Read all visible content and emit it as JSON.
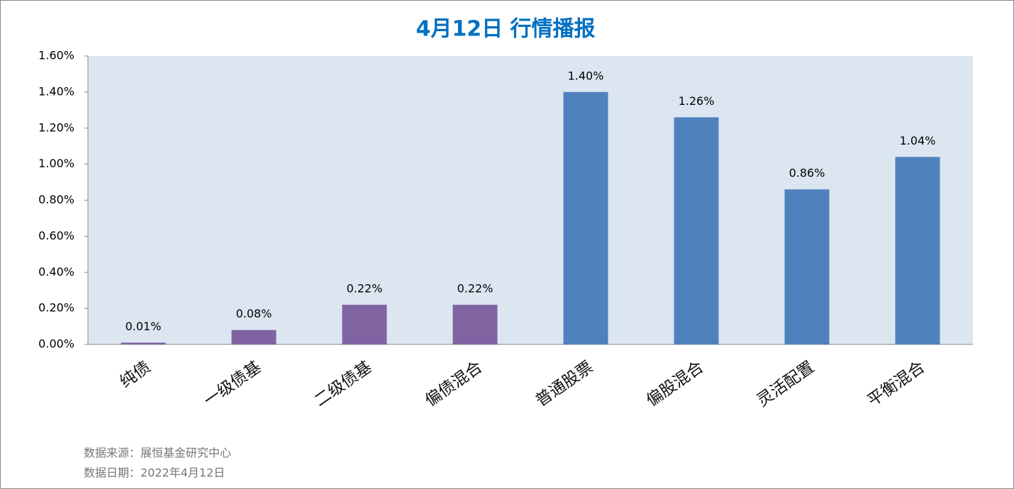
{
  "chart_data": {
    "type": "bar",
    "title": "4月12日  行情播报",
    "categories": [
      "纯债",
      "一级债基",
      "二级债基",
      "偏债混合",
      "普通股票",
      "偏股混合",
      "灵活配置",
      "平衡混合"
    ],
    "values": [
      0.01,
      0.08,
      0.22,
      0.22,
      1.4,
      1.26,
      0.86,
      1.04
    ],
    "value_labels": [
      "0.01%",
      "0.08%",
      "0.22%",
      "0.22%",
      "1.40%",
      "1.26%",
      "0.86%",
      "1.04%"
    ],
    "colors": [
      "#8064a2",
      "#8064a2",
      "#8064a2",
      "#8064a2",
      "#4f81bd",
      "#4f81bd",
      "#4f81bd",
      "#4f81bd"
    ],
    "ylim": [
      0,
      1.6
    ],
    "yticks": [
      {
        "value": 0,
        "label": "0.00%"
      },
      {
        "value": 0.2,
        "label": "0.20%"
      },
      {
        "value": 0.4,
        "label": "0.40%"
      },
      {
        "value": 0.6,
        "label": "0.60%"
      },
      {
        "value": 0.8,
        "label": "0.80%"
      },
      {
        "value": 1.0,
        "label": "1.00%"
      },
      {
        "value": 1.2,
        "label": "1.20%"
      },
      {
        "value": 1.4,
        "label": "1.40%"
      },
      {
        "value": 1.6,
        "label": "1.60%"
      }
    ],
    "notes": [
      "数据来源：展恒基金研究中心",
      "数据日期：2022年4月12日"
    ]
  }
}
